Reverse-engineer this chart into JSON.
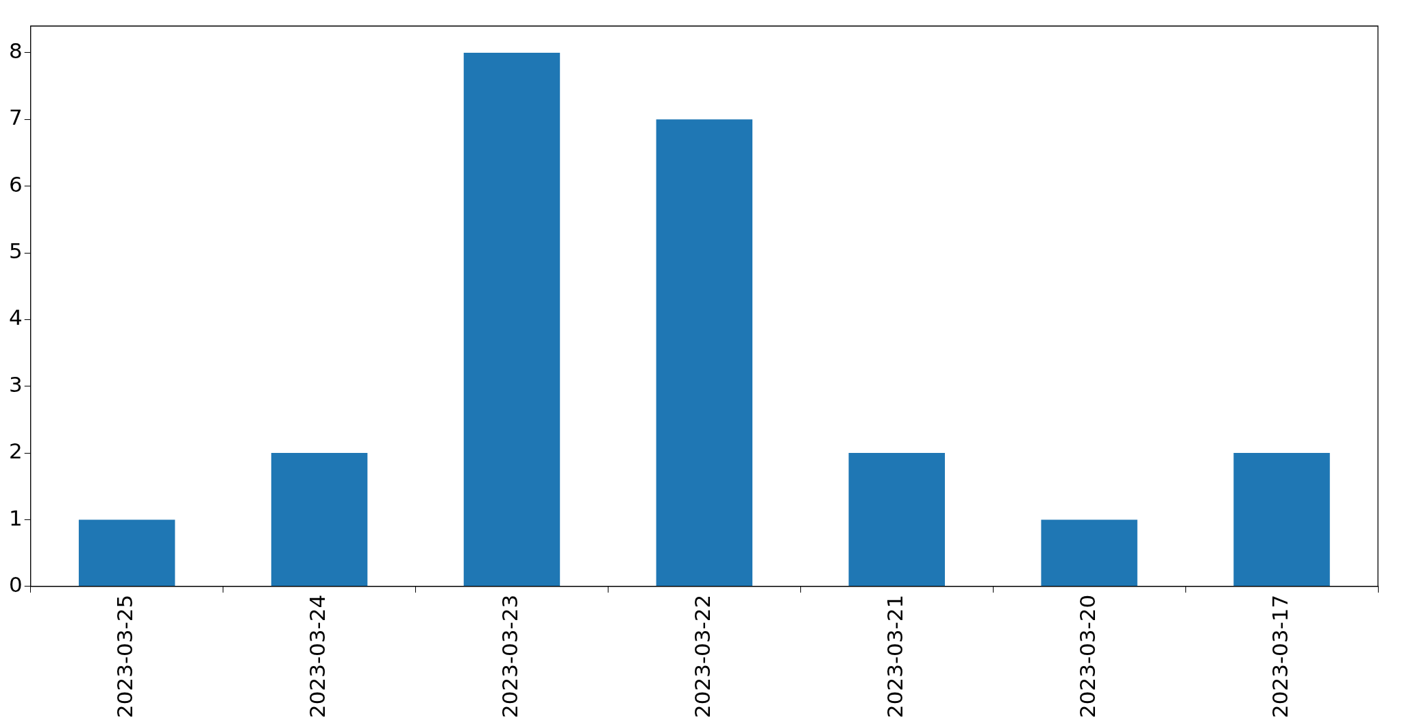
{
  "chart_data": {
    "type": "bar",
    "categories": [
      "2023-03-25",
      "2023-03-24",
      "2023-03-23",
      "2023-03-22",
      "2023-03-21",
      "2023-03-20",
      "2023-03-17"
    ],
    "values": [
      1,
      2,
      8,
      7,
      2,
      1,
      2
    ],
    "color": "#1f77b4",
    "ylim": [
      0,
      8.4
    ],
    "yticks": [
      0,
      1,
      2,
      3,
      4,
      5,
      6,
      7,
      8
    ],
    "grid": false,
    "legend": false
  }
}
